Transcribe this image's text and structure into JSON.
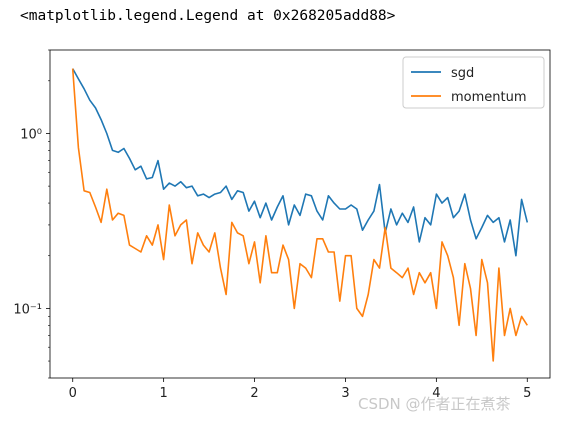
{
  "output_text": "<matplotlib.legend.Legend at 0x268205add88>",
  "watermark": "CSDN @作者正在煮茶",
  "chart_data": {
    "type": "line",
    "title": "",
    "xlabel": "",
    "ylabel": "",
    "yscale": "log",
    "xlim": [
      -0.25,
      5.25
    ],
    "ylim": [
      0.04,
      3.0
    ],
    "xticks": [
      0,
      1,
      2,
      3,
      4,
      5
    ],
    "xtick_labels": [
      "0",
      "1",
      "2",
      "3",
      "4",
      "5"
    ],
    "yticks": [
      1,
      0.1
    ],
    "ytick_labels": [
      "10⁰",
      "10⁻¹"
    ],
    "grid": false,
    "legend_position": "top-right",
    "x": [
      0,
      0.0625,
      0.125,
      0.1875,
      0.25,
      0.3125,
      0.375,
      0.4375,
      0.5,
      0.5625,
      0.625,
      0.6875,
      0.75,
      0.8125,
      0.875,
      0.9375,
      1.0,
      1.0625,
      1.125,
      1.1875,
      1.25,
      1.3125,
      1.375,
      1.4375,
      1.5,
      1.5625,
      1.625,
      1.6875,
      1.75,
      1.8125,
      1.875,
      1.9375,
      2.0,
      2.0625,
      2.125,
      2.1875,
      2.25,
      2.3125,
      2.375,
      2.4375,
      2.5,
      2.5625,
      2.625,
      2.6875,
      2.75,
      2.8125,
      2.875,
      2.9375,
      3.0,
      3.0625,
      3.125,
      3.1875,
      3.25,
      3.3125,
      3.375,
      3.4375,
      3.5,
      3.5625,
      3.625,
      3.6875,
      3.75,
      3.8125,
      3.875,
      3.9375,
      4.0,
      4.0625,
      4.125,
      4.1875,
      4.25,
      4.3125,
      4.375,
      4.4375,
      4.5,
      4.5625,
      4.625,
      4.6875,
      4.75,
      4.8125,
      4.875,
      4.9375,
      5.0
    ],
    "series": [
      {
        "name": "sgd",
        "color": "#1f77b4",
        "values": [
          2.35,
          2.05,
          1.8,
          1.55,
          1.4,
          1.2,
          1.0,
          0.8,
          0.78,
          0.82,
          0.72,
          0.62,
          0.65,
          0.55,
          0.56,
          0.7,
          0.48,
          0.52,
          0.5,
          0.53,
          0.49,
          0.5,
          0.44,
          0.45,
          0.43,
          0.45,
          0.46,
          0.5,
          0.42,
          0.47,
          0.46,
          0.36,
          0.41,
          0.33,
          0.4,
          0.32,
          0.38,
          0.44,
          0.3,
          0.39,
          0.34,
          0.45,
          0.44,
          0.36,
          0.32,
          0.44,
          0.4,
          0.37,
          0.37,
          0.39,
          0.37,
          0.28,
          0.32,
          0.36,
          0.51,
          0.27,
          0.37,
          0.3,
          0.35,
          0.31,
          0.38,
          0.24,
          0.33,
          0.3,
          0.45,
          0.4,
          0.43,
          0.33,
          0.36,
          0.45,
          0.32,
          0.25,
          0.29,
          0.34,
          0.31,
          0.33,
          0.24,
          0.32,
          0.2,
          0.42,
          0.31
        ]
      },
      {
        "name": "momentum",
        "color": "#ff7f0e",
        "values": [
          2.35,
          0.83,
          0.47,
          0.46,
          0.38,
          0.31,
          0.48,
          0.32,
          0.35,
          0.34,
          0.23,
          0.22,
          0.21,
          0.26,
          0.23,
          0.3,
          0.19,
          0.39,
          0.26,
          0.3,
          0.32,
          0.18,
          0.27,
          0.23,
          0.21,
          0.27,
          0.17,
          0.12,
          0.31,
          0.27,
          0.26,
          0.18,
          0.24,
          0.14,
          0.26,
          0.16,
          0.16,
          0.23,
          0.19,
          0.1,
          0.18,
          0.17,
          0.15,
          0.25,
          0.25,
          0.21,
          0.21,
          0.11,
          0.2,
          0.2,
          0.1,
          0.09,
          0.12,
          0.19,
          0.17,
          0.29,
          0.17,
          0.16,
          0.15,
          0.17,
          0.12,
          0.16,
          0.14,
          0.16,
          0.1,
          0.24,
          0.2,
          0.15,
          0.08,
          0.18,
          0.13,
          0.07,
          0.19,
          0.14,
          0.05,
          0.17,
          0.07,
          0.1,
          0.07,
          0.09,
          0.08
        ]
      }
    ]
  }
}
